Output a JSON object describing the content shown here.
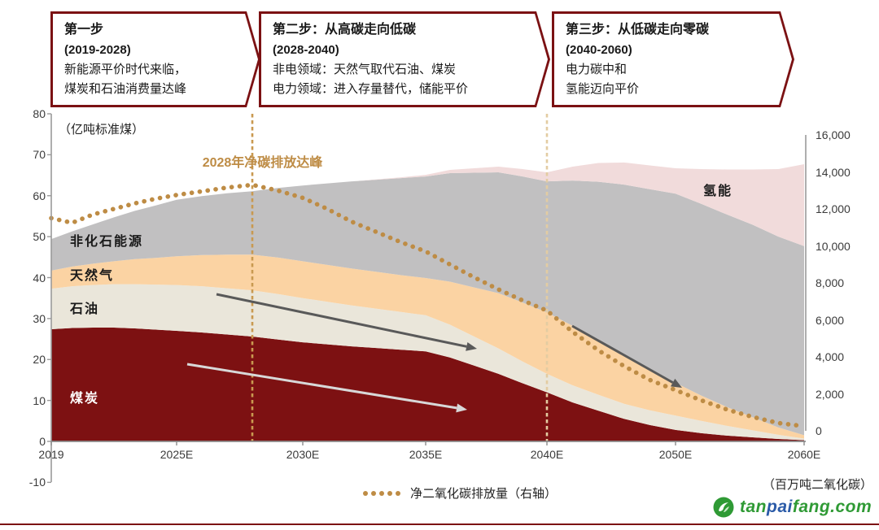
{
  "steps": [
    {
      "title": "第一步",
      "period": "(2019-2028)",
      "line1": "新能源平价时代来临，",
      "line2": "煤炭和石油消费量达峰"
    },
    {
      "title": "第二步：从高碳走向低碳",
      "period": "(2028-2040)",
      "line1": "非电领域：天然气取代石油、煤炭",
      "line2": "电力领域：进入存量替代，储能平价"
    },
    {
      "title": "第三步：从低碳走向零碳",
      "period": "(2040-2060)",
      "line1": "电力碳中和",
      "line2": "氢能迈向平价"
    }
  ],
  "chart": {
    "left_axis_unit": "（亿吨标准煤）",
    "right_axis_unit": "（百万吨二氧化碳）",
    "peak_annotation": "2028年净碳排放达峰",
    "legend_label": "净二氧化碳排放量（右轴）"
  },
  "chart_data": {
    "type": "area",
    "title": "",
    "x": [
      2019,
      2020,
      2021,
      2022,
      2023,
      2024,
      2025,
      2026,
      2027,
      2028,
      2029,
      2030,
      2031,
      2032,
      2033,
      2034,
      2035,
      2036,
      2037,
      2038,
      2039,
      2040,
      2042,
      2044,
      2046,
      2048,
      2050,
      2052,
      2054,
      2056,
      2058,
      2060
    ],
    "series": [
      {
        "name": "煤炭",
        "color": "#7D1112",
        "values": [
          27.4,
          27.7,
          27.8,
          27.8,
          27.6,
          27.3,
          27.0,
          26.6,
          26.1,
          25.6,
          24.9,
          24.2,
          23.7,
          23.2,
          22.8,
          22.4,
          22.0,
          20.5,
          18.5,
          16.5,
          14.2,
          12.0,
          9.5,
          7.5,
          5.5,
          4.0,
          2.8,
          2.0,
          1.4,
          1.0,
          0.6,
          0.3
        ]
      },
      {
        "name": "石油",
        "color": "#EAE6DA",
        "values": [
          9.9,
          10.2,
          10.4,
          10.6,
          10.8,
          11.0,
          11.2,
          11.3,
          11.3,
          11.3,
          11.1,
          10.8,
          10.4,
          10.0,
          9.6,
          9.2,
          8.8,
          8.0,
          7.1,
          6.2,
          5.3,
          4.5,
          4.2,
          3.9,
          3.7,
          3.6,
          3.5,
          3.0,
          2.4,
          1.7,
          1.0,
          0.4
        ]
      },
      {
        "name": "天然气",
        "color": "#FBD3A3",
        "values": [
          4.4,
          4.8,
          5.2,
          5.6,
          6.1,
          6.5,
          7.0,
          7.6,
          8.2,
          8.7,
          8.9,
          9.0,
          9.0,
          9.0,
          9.0,
          9.0,
          9.1,
          10.5,
          12.0,
          13.5,
          14.4,
          15.0,
          14.5,
          13.5,
          12.0,
          10.0,
          8.0,
          6.2,
          4.6,
          3.2,
          1.8,
          0.8
        ]
      },
      {
        "name": "非化石能源",
        "color": "#C1C0C1",
        "values": [
          7.7,
          8.6,
          9.6,
          10.7,
          11.8,
          12.8,
          13.8,
          14.4,
          15.0,
          15.5,
          17.0,
          18.5,
          19.9,
          21.3,
          22.5,
          23.7,
          24.8,
          26.5,
          28.0,
          29.5,
          30.8,
          32.0,
          35.5,
          38.5,
          41.5,
          44.0,
          46.2,
          46.8,
          47.0,
          47.0,
          46.6,
          46.2
        ]
      },
      {
        "name": "氢能",
        "color": "#F1DBDB",
        "values": [
          0,
          0,
          0,
          0,
          0,
          0,
          0,
          0,
          0,
          0,
          0,
          0,
          0,
          0,
          0.1,
          0.2,
          0.4,
          0.8,
          1.1,
          1.4,
          1.8,
          2.2,
          3.4,
          4.6,
          5.4,
          5.8,
          6.2,
          8.5,
          11.0,
          13.5,
          16.5,
          20.0
        ]
      }
    ],
    "line_series": {
      "name": "净二氧化碳排放量（右轴）",
      "axis": "right",
      "color": "#BE8C45",
      "values": [
        11500,
        11250,
        11700,
        12000,
        12300,
        12550,
        12750,
        12950,
        13150,
        13300,
        13000,
        12600,
        12000,
        11300,
        10750,
        10200,
        9700,
        9000,
        8300,
        7650,
        7050,
        6500,
        5350,
        4350,
        3500,
        2750,
        2200,
        1650,
        1150,
        750,
        420,
        250
      ]
    },
    "left_axis": {
      "ticks": [
        "80",
        "70",
        "60",
        "50",
        "40",
        "30",
        "20",
        "10",
        "0",
        "-10"
      ],
      "range": [
        -10,
        80
      ],
      "unit": "亿吨标准煤"
    },
    "right_axis": {
      "ticks": [
        "16,000",
        "14,000",
        "12,000",
        "10,000",
        "8,000",
        "6,000",
        "4,000",
        "2,000",
        "0"
      ],
      "range": [
        0,
        16000
      ],
      "unit": "百万吨二氧化碳"
    },
    "x_tick_labels": [
      "2019",
      "2025E",
      "2030E",
      "2035E",
      "2040E",
      "2050E",
      "2060E"
    ],
    "x_tick_years": [
      2019,
      2025,
      2030,
      2035,
      2040,
      2050,
      2060
    ],
    "phase_lines": [
      {
        "year": 2028,
        "color": "#C99950"
      },
      {
        "year": 2040,
        "color": "#E3CCA2"
      }
    ],
    "arrows": [
      {
        "from": [
          266,
          362
        ],
        "to": [
          586,
          429
        ],
        "color": "#595959"
      },
      {
        "from": [
          230,
          448
        ],
        "to": [
          574,
          504
        ],
        "color": "#D8D8D8"
      },
      {
        "from": [
          703,
          401
        ],
        "to": [
          838,
          477
        ],
        "color": "#595959"
      }
    ],
    "grid": false,
    "legend_position": "bottom"
  },
  "watermark": {
    "seg1": "tan",
    "seg2": "pai",
    "seg3": "fang.com",
    "green": "#2F9A35",
    "blue": "#2B5BA8"
  },
  "colors": {
    "maroon": "#7B1113",
    "tan": "#BE8C45"
  }
}
